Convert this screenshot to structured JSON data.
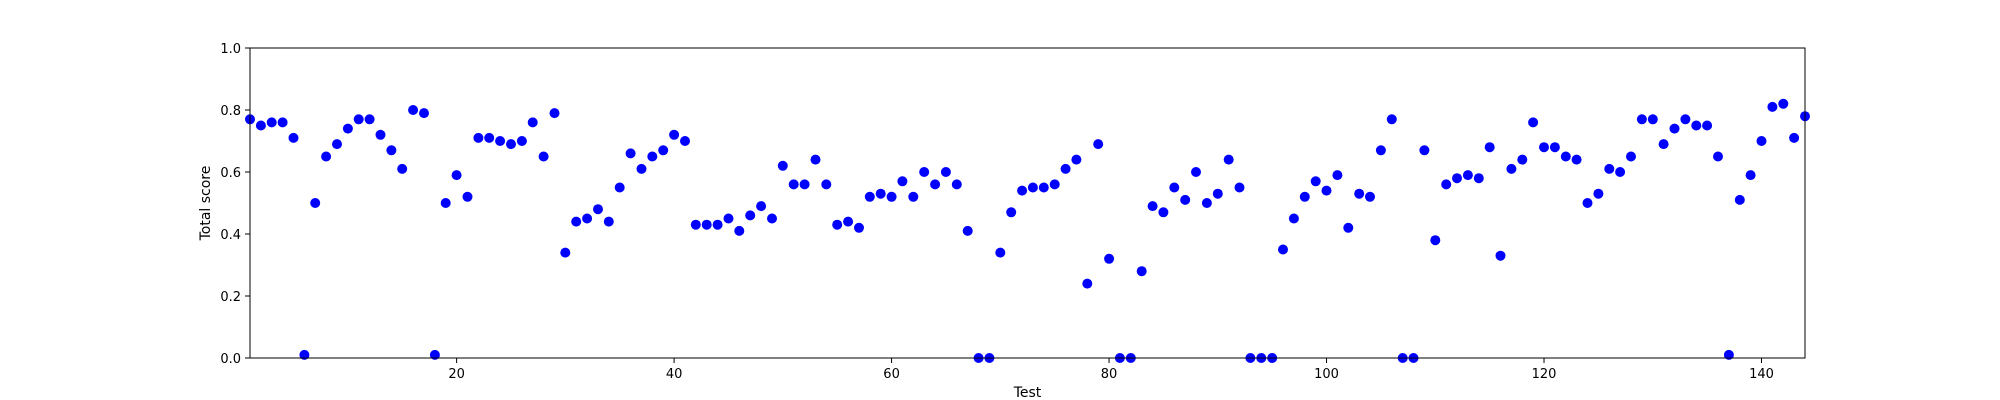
{
  "chart_data": {
    "type": "scatter",
    "title": "",
    "xlabel": "Test",
    "ylabel": "Total score",
    "xlim": [
      1,
      144
    ],
    "ylim": [
      0.0,
      1.0
    ],
    "x_ticks": [
      20,
      40,
      60,
      80,
      100,
      120,
      140
    ],
    "y_ticks": [
      0.0,
      0.2,
      0.4,
      0.6,
      0.8,
      1.0
    ],
    "x_tick_labels": [
      "20",
      "40",
      "60",
      "80",
      "100",
      "120",
      "140"
    ],
    "y_tick_labels": [
      "0.0",
      "0.2",
      "0.4",
      "0.6",
      "0.8",
      "1.0"
    ],
    "grid": false,
    "marker_color": "#0000ff",
    "series": [
      {
        "x": [
          1,
          2,
          3,
          4,
          5,
          6,
          7,
          8,
          9,
          10,
          11,
          12,
          13,
          14,
          15,
          16,
          17,
          18,
          19,
          20,
          21,
          22,
          23,
          24,
          25,
          26,
          27,
          28,
          29,
          30,
          31,
          32,
          33,
          34,
          35,
          36,
          37,
          38,
          39,
          40,
          41,
          42,
          43,
          44,
          45,
          46,
          47,
          48,
          49,
          50,
          51,
          52,
          53,
          54,
          55,
          56,
          57,
          58,
          59,
          60,
          61,
          62,
          63,
          64,
          65,
          66,
          67,
          68,
          69,
          70,
          71,
          72,
          73,
          74,
          75,
          76,
          77,
          78,
          79,
          80,
          81,
          82,
          83,
          84,
          85,
          86,
          87,
          88,
          89,
          90,
          91,
          92,
          93,
          94,
          95,
          96,
          97,
          98,
          99,
          100,
          101,
          102,
          103,
          104,
          105,
          106,
          107,
          108,
          109,
          110,
          111,
          112,
          113,
          114,
          115,
          116,
          117,
          118,
          119,
          120,
          121,
          122,
          123,
          124,
          125,
          126,
          127,
          128,
          129,
          130,
          131,
          132,
          133,
          134,
          135,
          136,
          137,
          138,
          139,
          140,
          141,
          142,
          143,
          144
        ],
        "y": [
          0.77,
          0.75,
          0.76,
          0.76,
          0.71,
          0.01,
          0.5,
          0.65,
          0.69,
          0.74,
          0.77,
          0.77,
          0.72,
          0.67,
          0.61,
          0.8,
          0.79,
          0.01,
          0.5,
          0.59,
          0.52,
          0.71,
          0.71,
          0.7,
          0.69,
          0.7,
          0.76,
          0.65,
          0.79,
          0.34,
          0.44,
          0.45,
          0.48,
          0.44,
          0.55,
          0.66,
          0.61,
          0.65,
          0.67,
          0.72,
          0.7,
          0.43,
          0.43,
          0.43,
          0.45,
          0.41,
          0.46,
          0.49,
          0.45,
          0.62,
          0.56,
          0.56,
          0.64,
          0.56,
          0.43,
          0.44,
          0.42,
          0.52,
          0.53,
          0.52,
          0.57,
          0.52,
          0.6,
          0.56,
          0.6,
          0.56,
          0.41,
          0.0,
          0.0,
          0.34,
          0.47,
          0.54,
          0.55,
          0.55,
          0.56,
          0.61,
          0.64,
          0.24,
          0.69,
          0.32,
          0.0,
          0.0,
          0.28,
          0.49,
          0.47,
          0.55,
          0.51,
          0.6,
          0.5,
          0.53,
          0.64,
          0.55,
          0.0,
          0.0,
          0.0,
          0.35,
          0.45,
          0.52,
          0.57,
          0.54,
          0.59,
          0.42,
          0.53,
          0.52,
          0.67,
          0.77,
          0.0,
          0.0,
          0.67,
          0.38,
          0.56,
          0.58,
          0.59,
          0.58,
          0.68,
          0.33,
          0.61,
          0.64,
          0.76,
          0.68,
          0.68,
          0.65,
          0.64,
          0.5,
          0.53,
          0.61,
          0.6,
          0.65,
          0.77,
          0.77,
          0.69,
          0.74,
          0.77,
          0.75,
          0.75,
          0.65,
          0.01,
          0.51,
          0.59,
          0.7,
          0.81,
          0.82,
          0.71,
          0.78
        ]
      }
    ]
  }
}
